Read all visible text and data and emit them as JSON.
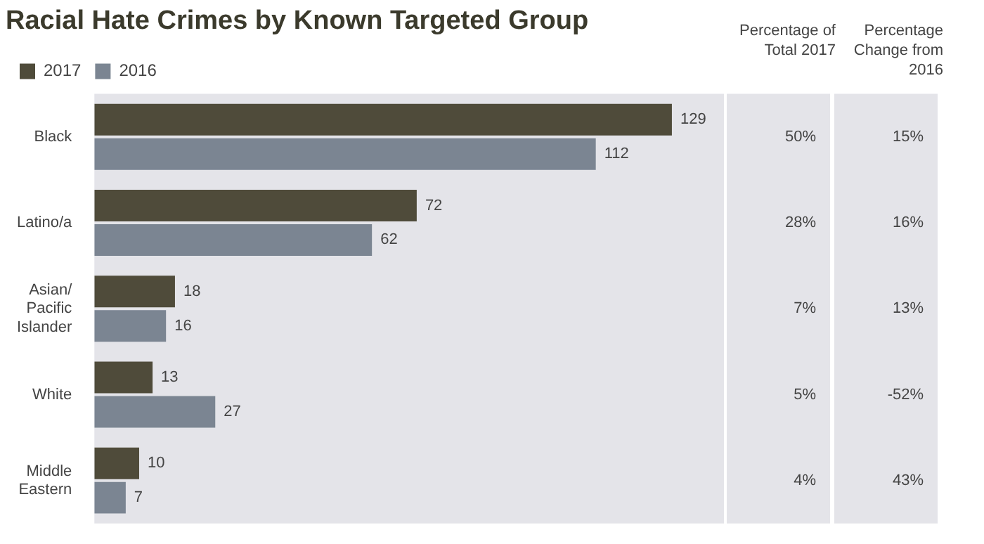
{
  "chart_data": {
    "type": "bar",
    "orientation": "horizontal",
    "title": "Racial Hate Crimes by Known Targeted Group",
    "categories": [
      "Black",
      "Latino/a",
      "Asian/ Pacific Islander",
      "White",
      "Middle Eastern"
    ],
    "series": [
      {
        "name": "2017",
        "color": "#4f4b3a",
        "values": [
          129,
          72,
          18,
          13,
          10
        ]
      },
      {
        "name": "2016",
        "color": "#7b8592",
        "values": [
          112,
          62,
          16,
          27,
          7
        ]
      }
    ],
    "data_labels": true,
    "legend": "top left",
    "grid": false,
    "annotations": [
      "Percentage of Total 2017",
      "Percentage Change from 2016",
      "50%",
      "15%",
      "28%",
      "16%",
      "7%",
      "13%",
      "5%",
      "-52%",
      "4%",
      "43%"
    ]
  }
}
